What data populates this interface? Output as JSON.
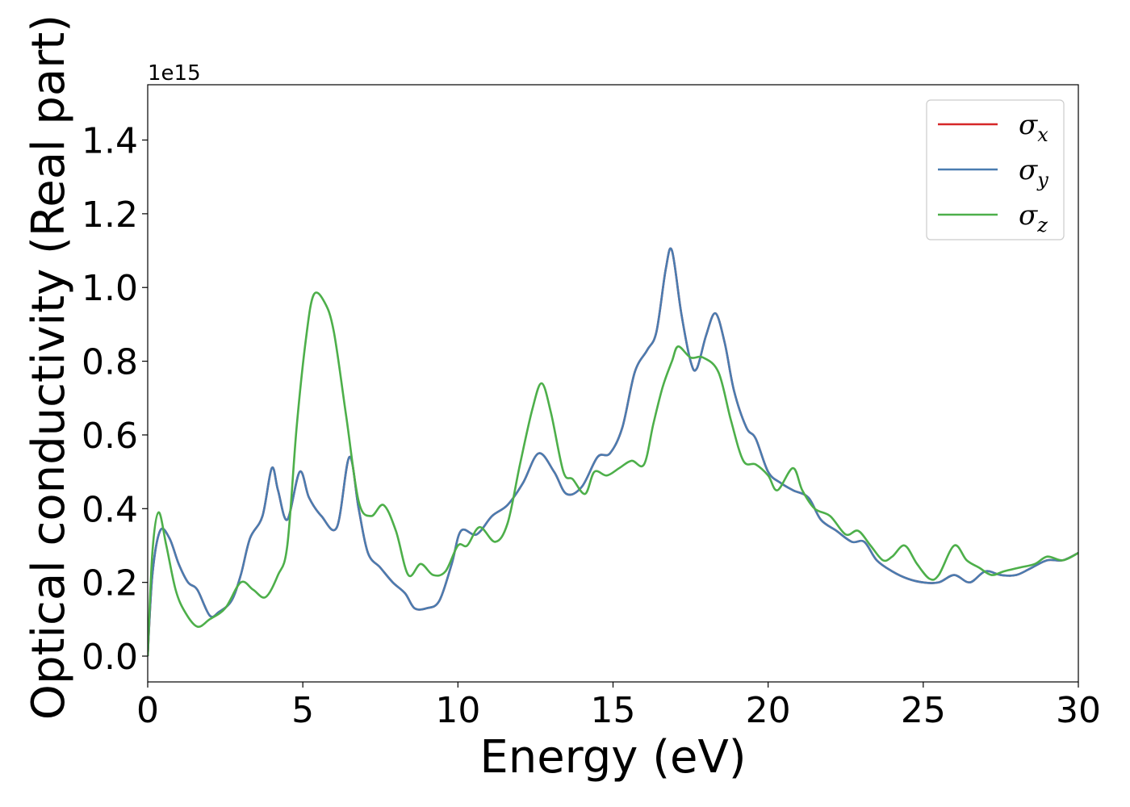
{
  "chart_data": {
    "type": "line",
    "title": "",
    "xlabel": "Energy (eV)",
    "ylabel": "Optical conductivity (Real part)",
    "y_offset_label": "1e15",
    "xlim": [
      0,
      30
    ],
    "ylim": [
      -0.07,
      1.55
    ],
    "xticks": [
      0,
      5,
      10,
      15,
      20,
      25,
      30
    ],
    "xtick_labels": [
      "0",
      "5",
      "10",
      "15",
      "20",
      "25",
      "30"
    ],
    "yticks": [
      0.0,
      0.2,
      0.4,
      0.6,
      0.8,
      1.0,
      1.2,
      1.4
    ],
    "ytick_labels": [
      "0.0",
      "0.2",
      "0.4",
      "0.6",
      "0.8",
      "1.0",
      "1.2",
      "1.4"
    ],
    "grid": false,
    "legend_position": "top-right",
    "series": [
      {
        "name": "σ",
        "subscript": "x",
        "color": "#d62728",
        "points": [
          [
            0,
            0.0
          ],
          [
            0.15,
            0.22
          ],
          [
            0.4,
            0.34
          ],
          [
            0.7,
            0.32
          ],
          [
            1.0,
            0.25
          ],
          [
            1.3,
            0.2
          ],
          [
            1.6,
            0.18
          ],
          [
            2.0,
            0.11
          ],
          [
            2.3,
            0.12
          ],
          [
            2.7,
            0.15
          ],
          [
            3.0,
            0.22
          ],
          [
            3.3,
            0.32
          ],
          [
            3.7,
            0.38
          ],
          [
            4.0,
            0.51
          ],
          [
            4.2,
            0.45
          ],
          [
            4.5,
            0.37
          ],
          [
            4.9,
            0.5
          ],
          [
            5.2,
            0.43
          ],
          [
            5.6,
            0.38
          ],
          [
            6.1,
            0.35
          ],
          [
            6.5,
            0.54
          ],
          [
            6.8,
            0.4
          ],
          [
            7.1,
            0.28
          ],
          [
            7.5,
            0.24
          ],
          [
            7.9,
            0.2
          ],
          [
            8.3,
            0.17
          ],
          [
            8.6,
            0.13
          ],
          [
            9.0,
            0.13
          ],
          [
            9.4,
            0.15
          ],
          [
            9.8,
            0.25
          ],
          [
            10.1,
            0.34
          ],
          [
            10.6,
            0.33
          ],
          [
            11.1,
            0.38
          ],
          [
            11.6,
            0.41
          ],
          [
            12.1,
            0.47
          ],
          [
            12.6,
            0.55
          ],
          [
            13.1,
            0.5
          ],
          [
            13.5,
            0.44
          ],
          [
            14.0,
            0.46
          ],
          [
            14.5,
            0.54
          ],
          [
            14.9,
            0.55
          ],
          [
            15.3,
            0.62
          ],
          [
            15.7,
            0.77
          ],
          [
            16.1,
            0.83
          ],
          [
            16.4,
            0.88
          ],
          [
            16.7,
            1.05
          ],
          [
            16.9,
            1.1
          ],
          [
            17.2,
            0.93
          ],
          [
            17.5,
            0.8
          ],
          [
            17.7,
            0.78
          ],
          [
            18.0,
            0.87
          ],
          [
            18.3,
            0.93
          ],
          [
            18.6,
            0.85
          ],
          [
            18.9,
            0.72
          ],
          [
            19.3,
            0.62
          ],
          [
            19.6,
            0.59
          ],
          [
            20.0,
            0.5
          ],
          [
            20.4,
            0.47
          ],
          [
            20.8,
            0.45
          ],
          [
            21.3,
            0.43
          ],
          [
            21.7,
            0.37
          ],
          [
            22.2,
            0.34
          ],
          [
            22.7,
            0.31
          ],
          [
            23.1,
            0.31
          ],
          [
            23.5,
            0.26
          ],
          [
            24.0,
            0.23
          ],
          [
            24.5,
            0.21
          ],
          [
            25.0,
            0.2
          ],
          [
            25.5,
            0.2
          ],
          [
            26.0,
            0.22
          ],
          [
            26.5,
            0.2
          ],
          [
            27.0,
            0.23
          ],
          [
            27.5,
            0.22
          ],
          [
            28.0,
            0.22
          ],
          [
            28.5,
            0.24
          ],
          [
            29.0,
            0.26
          ],
          [
            29.5,
            0.26
          ],
          [
            30.0,
            0.28
          ]
        ]
      },
      {
        "name": "σ",
        "subscript": "y",
        "color": "#4a7cb0",
        "points": [
          [
            0,
            0.0
          ],
          [
            0.15,
            0.22
          ],
          [
            0.4,
            0.34
          ],
          [
            0.7,
            0.32
          ],
          [
            1.0,
            0.25
          ],
          [
            1.3,
            0.2
          ],
          [
            1.6,
            0.18
          ],
          [
            2.0,
            0.11
          ],
          [
            2.3,
            0.12
          ],
          [
            2.7,
            0.15
          ],
          [
            3.0,
            0.22
          ],
          [
            3.3,
            0.32
          ],
          [
            3.7,
            0.38
          ],
          [
            4.0,
            0.51
          ],
          [
            4.2,
            0.45
          ],
          [
            4.5,
            0.37
          ],
          [
            4.9,
            0.5
          ],
          [
            5.2,
            0.43
          ],
          [
            5.6,
            0.38
          ],
          [
            6.1,
            0.35
          ],
          [
            6.5,
            0.54
          ],
          [
            6.8,
            0.4
          ],
          [
            7.1,
            0.28
          ],
          [
            7.5,
            0.24
          ],
          [
            7.9,
            0.2
          ],
          [
            8.3,
            0.17
          ],
          [
            8.6,
            0.13
          ],
          [
            9.0,
            0.13
          ],
          [
            9.4,
            0.15
          ],
          [
            9.8,
            0.25
          ],
          [
            10.1,
            0.34
          ],
          [
            10.6,
            0.33
          ],
          [
            11.1,
            0.38
          ],
          [
            11.6,
            0.41
          ],
          [
            12.1,
            0.47
          ],
          [
            12.6,
            0.55
          ],
          [
            13.1,
            0.5
          ],
          [
            13.5,
            0.44
          ],
          [
            14.0,
            0.46
          ],
          [
            14.5,
            0.54
          ],
          [
            14.9,
            0.55
          ],
          [
            15.3,
            0.62
          ],
          [
            15.7,
            0.77
          ],
          [
            16.1,
            0.83
          ],
          [
            16.4,
            0.88
          ],
          [
            16.7,
            1.05
          ],
          [
            16.9,
            1.1
          ],
          [
            17.2,
            0.93
          ],
          [
            17.5,
            0.8
          ],
          [
            17.7,
            0.78
          ],
          [
            18.0,
            0.87
          ],
          [
            18.3,
            0.93
          ],
          [
            18.6,
            0.85
          ],
          [
            18.9,
            0.72
          ],
          [
            19.3,
            0.62
          ],
          [
            19.6,
            0.59
          ],
          [
            20.0,
            0.5
          ],
          [
            20.4,
            0.47
          ],
          [
            20.8,
            0.45
          ],
          [
            21.3,
            0.43
          ],
          [
            21.7,
            0.37
          ],
          [
            22.2,
            0.34
          ],
          [
            22.7,
            0.31
          ],
          [
            23.1,
            0.31
          ],
          [
            23.5,
            0.26
          ],
          [
            24.0,
            0.23
          ],
          [
            24.5,
            0.21
          ],
          [
            25.0,
            0.2
          ],
          [
            25.5,
            0.2
          ],
          [
            26.0,
            0.22
          ],
          [
            26.5,
            0.2
          ],
          [
            27.0,
            0.23
          ],
          [
            27.5,
            0.22
          ],
          [
            28.0,
            0.22
          ],
          [
            28.5,
            0.24
          ],
          [
            29.0,
            0.26
          ],
          [
            29.5,
            0.26
          ],
          [
            30.0,
            0.28
          ]
        ]
      },
      {
        "name": "σ",
        "subscript": "z",
        "color": "#4daf4a",
        "points": [
          [
            0,
            0.0
          ],
          [
            0.15,
            0.28
          ],
          [
            0.35,
            0.39
          ],
          [
            0.6,
            0.3
          ],
          [
            0.9,
            0.18
          ],
          [
            1.2,
            0.12
          ],
          [
            1.6,
            0.08
          ],
          [
            2.0,
            0.1
          ],
          [
            2.5,
            0.13
          ],
          [
            3.0,
            0.2
          ],
          [
            3.4,
            0.18
          ],
          [
            3.8,
            0.16
          ],
          [
            4.2,
            0.22
          ],
          [
            4.5,
            0.3
          ],
          [
            4.8,
            0.62
          ],
          [
            5.1,
            0.86
          ],
          [
            5.35,
            0.98
          ],
          [
            5.7,
            0.96
          ],
          [
            6.0,
            0.88
          ],
          [
            6.4,
            0.65
          ],
          [
            6.8,
            0.42
          ],
          [
            7.2,
            0.38
          ],
          [
            7.6,
            0.41
          ],
          [
            8.0,
            0.34
          ],
          [
            8.4,
            0.22
          ],
          [
            8.8,
            0.25
          ],
          [
            9.2,
            0.22
          ],
          [
            9.6,
            0.23
          ],
          [
            10.0,
            0.3
          ],
          [
            10.3,
            0.3
          ],
          [
            10.7,
            0.35
          ],
          [
            11.2,
            0.31
          ],
          [
            11.6,
            0.36
          ],
          [
            12.0,
            0.52
          ],
          [
            12.4,
            0.67
          ],
          [
            12.7,
            0.74
          ],
          [
            13.0,
            0.66
          ],
          [
            13.4,
            0.5
          ],
          [
            13.7,
            0.48
          ],
          [
            14.1,
            0.44
          ],
          [
            14.4,
            0.5
          ],
          [
            14.8,
            0.49
          ],
          [
            15.2,
            0.51
          ],
          [
            15.6,
            0.53
          ],
          [
            16.0,
            0.52
          ],
          [
            16.3,
            0.63
          ],
          [
            16.6,
            0.73
          ],
          [
            16.9,
            0.8
          ],
          [
            17.1,
            0.84
          ],
          [
            17.5,
            0.81
          ],
          [
            17.9,
            0.81
          ],
          [
            18.4,
            0.77
          ],
          [
            18.8,
            0.64
          ],
          [
            19.2,
            0.53
          ],
          [
            19.6,
            0.52
          ],
          [
            20.0,
            0.49
          ],
          [
            20.3,
            0.45
          ],
          [
            20.8,
            0.51
          ],
          [
            21.1,
            0.45
          ],
          [
            21.5,
            0.4
          ],
          [
            22.0,
            0.38
          ],
          [
            22.5,
            0.33
          ],
          [
            22.9,
            0.34
          ],
          [
            23.3,
            0.3
          ],
          [
            23.7,
            0.26
          ],
          [
            24.0,
            0.27
          ],
          [
            24.4,
            0.3
          ],
          [
            24.8,
            0.25
          ],
          [
            25.2,
            0.21
          ],
          [
            25.5,
            0.22
          ],
          [
            26.0,
            0.3
          ],
          [
            26.4,
            0.26
          ],
          [
            26.8,
            0.24
          ],
          [
            27.2,
            0.22
          ],
          [
            27.6,
            0.23
          ],
          [
            28.1,
            0.24
          ],
          [
            28.6,
            0.25
          ],
          [
            29.0,
            0.27
          ],
          [
            29.5,
            0.26
          ],
          [
            30.0,
            0.28
          ]
        ]
      }
    ]
  }
}
